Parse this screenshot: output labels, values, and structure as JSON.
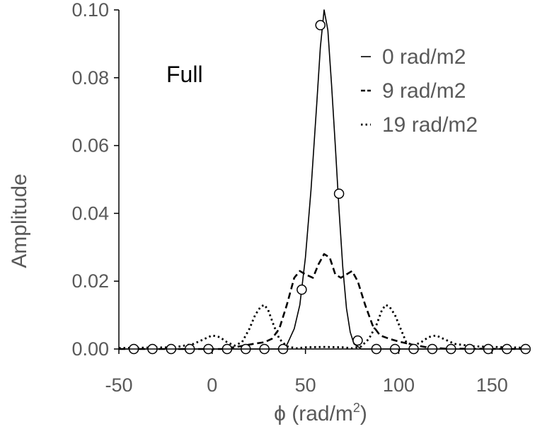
{
  "chart_data": {
    "type": "line",
    "title": "",
    "annotation": "Full",
    "xlabel": "ϕ (rad/m2)",
    "xlabel_main": "ϕ (rad/m",
    "xlabel_sup": "2",
    "xlabel_close": ")",
    "ylabel": "Amplitude",
    "xlim": [
      -50,
      170
    ],
    "ylim": [
      0,
      0.1
    ],
    "xticks": [
      -50,
      0,
      50,
      100,
      150
    ],
    "xtick_labels": [
      "-50",
      "0",
      "50",
      "100",
      "150"
    ],
    "yticks": [
      0,
      0.02,
      0.04,
      0.06,
      0.08,
      0.1
    ],
    "ytick_labels": [
      "0.00",
      "0.02",
      "0.04",
      "0.06",
      "0.08",
      "0.10"
    ],
    "legend_position": "top-right",
    "grid": false,
    "series": [
      {
        "name": "0 rad/m2",
        "style": "solid",
        "color": "#000000",
        "x": [
          -50,
          35,
          40,
          44,
          47,
          50,
          53,
          56,
          58,
          60,
          62,
          64,
          66,
          68,
          70,
          72,
          74,
          76,
          80,
          85,
          170
        ],
        "y": [
          0.0,
          0.0,
          0.0012,
          0.006,
          0.013,
          0.027,
          0.047,
          0.072,
          0.089,
          0.1,
          0.094,
          0.078,
          0.06,
          0.041,
          0.024,
          0.012,
          0.005,
          0.0015,
          0.0,
          0.0,
          0.0
        ]
      },
      {
        "name": "9 rad/m2",
        "style": "dashed",
        "color": "#000000",
        "x": [
          -50,
          5,
          15,
          22,
          28,
          32,
          36,
          40,
          44,
          47,
          50,
          54,
          57,
          60,
          63,
          66,
          69,
          72,
          75,
          78,
          82,
          86,
          90,
          95,
          100,
          108,
          115,
          125,
          170
        ],
        "y": [
          0.0,
          0.0,
          0.0008,
          0.0015,
          0.002,
          0.003,
          0.006,
          0.013,
          0.021,
          0.023,
          0.022,
          0.021,
          0.025,
          0.028,
          0.027,
          0.022,
          0.021,
          0.022,
          0.023,
          0.02,
          0.013,
          0.007,
          0.004,
          0.003,
          0.0022,
          0.0012,
          0.0005,
          0.0001,
          0.0
        ]
      },
      {
        "name": "19 rad/m2",
        "style": "dotted",
        "color": "#000000",
        "x": [
          -50,
          -20,
          -10,
          -4,
          0,
          4,
          8,
          12,
          16,
          20,
          23,
          26,
          28,
          30,
          33,
          36,
          40,
          45,
          50,
          60,
          70,
          75,
          80,
          84,
          88,
          91,
          93,
          95,
          98,
          101,
          104,
          108,
          112,
          116,
          120,
          124,
          130,
          140,
          150,
          160,
          170
        ],
        "y": [
          0.0003,
          0.0005,
          0.0015,
          0.003,
          0.004,
          0.0035,
          0.002,
          0.001,
          0.002,
          0.006,
          0.01,
          0.0125,
          0.013,
          0.0115,
          0.007,
          0.003,
          0.0008,
          0.0002,
          0.0005,
          0.0006,
          0.0005,
          0.0002,
          0.0008,
          0.003,
          0.007,
          0.0115,
          0.013,
          0.0125,
          0.01,
          0.006,
          0.002,
          0.001,
          0.002,
          0.0035,
          0.004,
          0.003,
          0.0015,
          0.0008,
          0.0006,
          0.0005,
          0.0003
        ]
      }
    ],
    "markers": {
      "style": "open-circle",
      "x": [
        -42,
        -32,
        -22,
        -12,
        -2,
        8,
        18,
        28,
        38,
        48,
        58,
        68,
        78,
        88,
        98,
        108,
        118,
        128,
        138,
        148,
        158,
        168
      ],
      "y": [
        0.0,
        0.0,
        0.0,
        0.0,
        0.0,
        0.0,
        0.0,
        0.0,
        0.0,
        0.0175,
        0.0955,
        0.0458,
        0.0025,
        0.0,
        0.0,
        0.0,
        0.0,
        0.0,
        0.0,
        0.0,
        0.0,
        0.0
      ]
    }
  }
}
